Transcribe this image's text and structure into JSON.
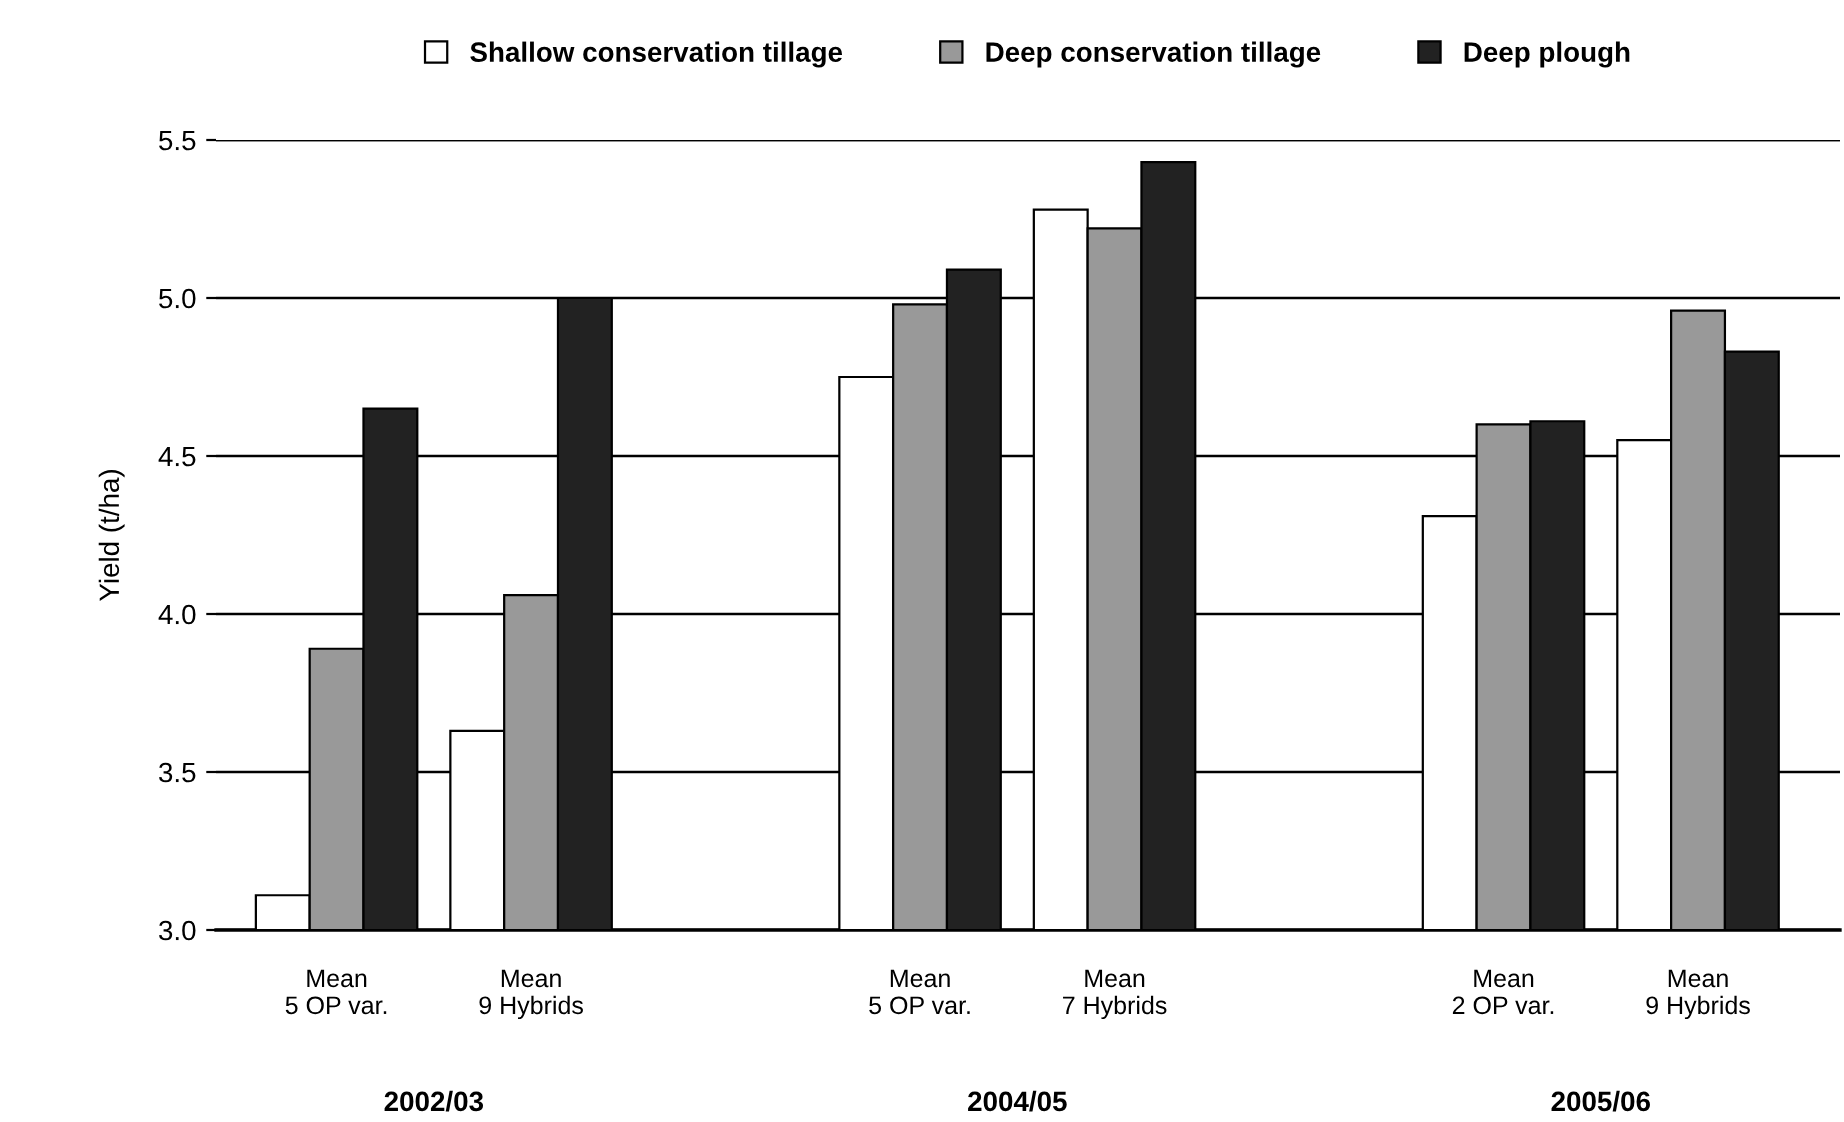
{
  "chart_data": {
    "type": "bar",
    "categories": [
      "Mean\n5 OP var.",
      "Mean\n9 Hybrids",
      null,
      "Mean\n5 OP var.",
      "Mean\n7 Hybrids",
      null,
      "Mean\n2 OP var.",
      "Mean\n9 Hybrids"
    ],
    "series": [
      {
        "name": "Shallow conservation tillage",
        "color": "#ffffff",
        "values": [
          3.11,
          3.63,
          null,
          4.75,
          5.28,
          null,
          4.31,
          4.55
        ]
      },
      {
        "name": "Deep conservation tillage",
        "color": "#999999",
        "values": [
          3.89,
          4.06,
          null,
          4.98,
          5.22,
          null,
          4.6,
          4.96
        ]
      },
      {
        "name": "Deep plough",
        "color": "#222222",
        "values": [
          4.65,
          5.0,
          null,
          5.09,
          5.43,
          null,
          4.61,
          4.83
        ]
      }
    ],
    "ylabel": "Yield (t/ha)",
    "ylim": [
      3.0,
      5.5
    ],
    "yticks": [
      {
        "value": 3.0,
        "label": "3.0"
      },
      {
        "value": 3.5,
        "label": "3.5"
      },
      {
        "value": 4.0,
        "label": "4.0"
      },
      {
        "value": 4.5,
        "label": "4.5"
      },
      {
        "value": 5.0,
        "label": "5.0"
      },
      {
        "value": 5.5,
        "label": "5.5"
      }
    ],
    "annotations": [
      "2002/03",
      "2004/05",
      "2005/06"
    ],
    "grid": "y",
    "legend": "top"
  }
}
